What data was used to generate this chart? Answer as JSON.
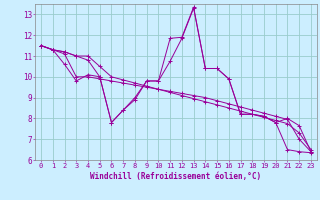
{
  "title": "",
  "xlabel": "Windchill (Refroidissement éolien,°C)",
  "ylabel": "",
  "background_color": "#cceeff",
  "grid_color": "#99cccc",
  "line_color": "#990099",
  "xlim": [
    -0.5,
    23.5
  ],
  "ylim": [
    6,
    13.5
  ],
  "xticks": [
    0,
    1,
    2,
    3,
    4,
    5,
    6,
    7,
    8,
    9,
    10,
    11,
    12,
    13,
    14,
    15,
    16,
    17,
    18,
    19,
    20,
    21,
    22,
    23
  ],
  "yticks": [
    6,
    7,
    8,
    9,
    10,
    11,
    12,
    13
  ],
  "lines": [
    {
      "x": [
        0,
        1,
        2,
        3,
        4,
        5,
        6,
        7,
        8,
        9,
        10,
        11,
        12,
        13,
        14,
        15,
        16,
        17,
        18,
        19,
        20,
        21,
        22,
        23
      ],
      "y": [
        11.5,
        11.3,
        11.1,
        10.0,
        10.0,
        9.9,
        9.8,
        9.7,
        9.6,
        9.5,
        9.4,
        9.3,
        9.2,
        9.1,
        9.0,
        8.85,
        8.7,
        8.55,
        8.4,
        8.25,
        8.1,
        7.95,
        7.0,
        6.4
      ]
    },
    {
      "x": [
        0,
        1,
        2,
        3,
        4,
        5,
        6,
        7,
        8,
        9,
        10,
        11,
        12,
        13,
        14,
        15,
        16,
        17,
        18,
        19,
        20,
        21,
        22,
        23
      ],
      "y": [
        11.5,
        11.3,
        10.6,
        9.8,
        10.1,
        10.0,
        7.8,
        8.4,
        9.0,
        9.8,
        9.8,
        10.75,
        11.85,
        13.3,
        10.4,
        10.4,
        9.9,
        8.2,
        8.2,
        8.1,
        7.8,
        6.5,
        6.4,
        6.35
      ]
    },
    {
      "x": [
        0,
        1,
        2,
        3,
        4,
        5,
        6,
        7,
        8,
        9,
        10,
        11,
        12,
        13,
        14,
        15,
        16,
        17,
        18,
        19,
        20,
        21,
        22,
        23
      ],
      "y": [
        11.5,
        11.3,
        11.2,
        11.0,
        11.0,
        10.5,
        10.0,
        9.85,
        9.7,
        9.55,
        9.4,
        9.25,
        9.1,
        8.95,
        8.8,
        8.65,
        8.5,
        8.35,
        8.2,
        8.05,
        7.9,
        7.75,
        7.3,
        6.5
      ]
    },
    {
      "x": [
        0,
        1,
        2,
        3,
        4,
        5,
        6,
        7,
        8,
        9,
        10,
        11,
        12,
        13,
        14,
        15,
        16,
        17,
        18,
        19,
        20,
        21,
        22,
        23
      ],
      "y": [
        11.5,
        11.3,
        11.2,
        11.0,
        10.8,
        10.0,
        7.8,
        8.4,
        8.9,
        9.8,
        9.8,
        11.85,
        11.9,
        13.35,
        10.4,
        10.4,
        9.9,
        8.2,
        8.2,
        8.1,
        7.8,
        8.0,
        7.65,
        6.4
      ]
    }
  ],
  "tick_fontsize": 5.0,
  "xlabel_fontsize": 5.5
}
